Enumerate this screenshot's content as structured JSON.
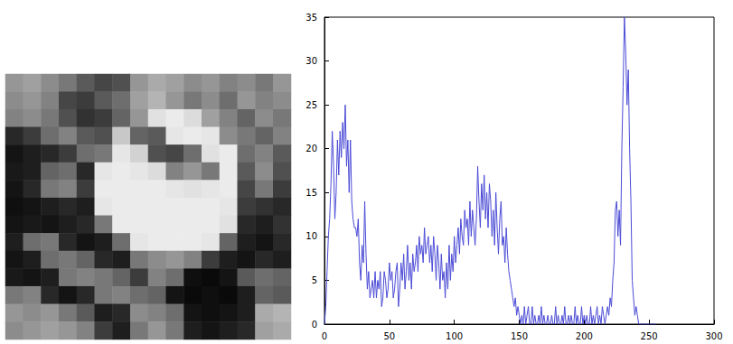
{
  "chart_data": [
    {
      "type": "heatmap",
      "cells": [
        [
          150,
          160,
          140,
          120,
          90,
          70,
          80,
          150,
          170,
          160,
          140,
          150,
          130,
          140,
          120,
          150
        ],
        [
          140,
          150,
          130,
          70,
          60,
          90,
          110,
          160,
          180,
          150,
          120,
          140,
          110,
          150,
          130,
          140
        ],
        [
          130,
          140,
          120,
          80,
          50,
          60,
          100,
          150,
          225,
          235,
          220,
          160,
          130,
          100,
          140,
          120
        ],
        [
          40,
          60,
          110,
          130,
          90,
          80,
          200,
          100,
          90,
          230,
          235,
          230,
          140,
          120,
          100,
          130
        ],
        [
          20,
          30,
          40,
          60,
          110,
          120,
          230,
          210,
          80,
          70,
          110,
          225,
          235,
          110,
          130,
          90
        ],
        [
          25,
          30,
          100,
          110,
          40,
          230,
          235,
          230,
          220,
          130,
          150,
          120,
          235,
          90,
          140,
          80
        ],
        [
          20,
          40,
          120,
          130,
          60,
          235,
          235,
          235,
          235,
          230,
          225,
          230,
          235,
          70,
          120,
          60
        ],
        [
          15,
          20,
          30,
          40,
          30,
          230,
          235,
          235,
          235,
          235,
          235,
          235,
          230,
          60,
          50,
          40
        ],
        [
          20,
          25,
          20,
          30,
          40,
          120,
          235,
          235,
          235,
          235,
          235,
          235,
          225,
          40,
          30,
          50
        ],
        [
          30,
          110,
          120,
          40,
          20,
          30,
          110,
          230,
          235,
          235,
          235,
          230,
          100,
          30,
          20,
          40
        ],
        [
          20,
          30,
          110,
          120,
          100,
          40,
          30,
          120,
          140,
          150,
          130,
          60,
          30,
          20,
          40,
          30
        ],
        [
          25,
          20,
          30,
          120,
          130,
          120,
          100,
          60,
          130,
          110,
          15,
          10,
          20,
          90,
          110,
          100
        ],
        [
          120,
          130,
          40,
          20,
          40,
          120,
          130,
          110,
          100,
          20,
          10,
          15,
          10,
          30,
          100,
          90
        ],
        [
          150,
          140,
          150,
          120,
          90,
          30,
          40,
          140,
          130,
          110,
          20,
          15,
          20,
          30,
          170,
          180
        ],
        [
          140,
          150,
          160,
          150,
          130,
          60,
          30,
          120,
          150,
          120,
          30,
          20,
          30,
          40,
          160,
          170
        ]
      ],
      "zlim": [
        0,
        255
      ],
      "tick_labels": false
    },
    {
      "type": "line",
      "x": [
        0,
        1,
        2,
        3,
        4,
        5,
        6,
        7,
        8,
        9,
        10,
        11,
        12,
        13,
        14,
        15,
        16,
        17,
        18,
        19,
        20,
        21,
        22,
        23,
        24,
        25,
        26,
        27,
        28,
        29,
        30,
        31,
        32,
        33,
        34,
        35,
        36,
        37,
        38,
        39,
        40,
        41,
        42,
        43,
        44,
        45,
        46,
        47,
        48,
        49,
        50,
        51,
        52,
        53,
        54,
        55,
        56,
        57,
        58,
        59,
        60,
        61,
        62,
        63,
        64,
        65,
        66,
        67,
        68,
        69,
        70,
        71,
        72,
        73,
        74,
        75,
        76,
        77,
        78,
        79,
        80,
        81,
        82,
        83,
        84,
        85,
        86,
        87,
        88,
        89,
        90,
        91,
        92,
        93,
        94,
        95,
        96,
        97,
        98,
        99,
        100,
        101,
        102,
        103,
        104,
        105,
        106,
        107,
        108,
        109,
        110,
        111,
        112,
        113,
        114,
        115,
        116,
        117,
        118,
        119,
        120,
        121,
        122,
        123,
        124,
        125,
        126,
        127,
        128,
        129,
        130,
        131,
        132,
        133,
        134,
        135,
        136,
        137,
        138,
        139,
        140,
        141,
        142,
        143,
        144,
        145,
        146,
        147,
        148,
        149,
        150,
        151,
        152,
        153,
        154,
        155,
        156,
        157,
        158,
        159,
        160,
        161,
        162,
        163,
        164,
        165,
        166,
        167,
        168,
        169,
        170,
        171,
        172,
        173,
        174,
        175,
        176,
        177,
        178,
        179,
        180,
        181,
        182,
        183,
        184,
        185,
        186,
        187,
        188,
        189,
        190,
        191,
        192,
        193,
        194,
        195,
        196,
        197,
        198,
        199,
        200,
        201,
        202,
        203,
        204,
        205,
        206,
        207,
        208,
        209,
        210,
        211,
        212,
        213,
        214,
        215,
        216,
        217,
        218,
        219,
        220,
        221,
        222,
        223,
        224,
        225,
        226,
        227,
        228,
        229,
        230,
        231,
        232,
        233,
        234,
        235,
        236,
        237,
        238,
        239,
        240,
        241,
        242,
        243,
        244,
        245,
        246,
        247,
        248,
        249,
        250,
        251,
        252,
        253,
        254,
        255
      ],
      "values": [
        0,
        2,
        6,
        10,
        12,
        16,
        22,
        18,
        12,
        15,
        21,
        17,
        22,
        19,
        23,
        20,
        25,
        18,
        21,
        15,
        21,
        14,
        12,
        11,
        11,
        10,
        12,
        7,
        5,
        9,
        7,
        14,
        8,
        4,
        6,
        3,
        4,
        5,
        3,
        6,
        3,
        5,
        4,
        6,
        2,
        3,
        6,
        5,
        3,
        4,
        7,
        5,
        6,
        3,
        4,
        6,
        7,
        2,
        4,
        7,
        5,
        8,
        4,
        6,
        9,
        5,
        7,
        4,
        8,
        6,
        7,
        9,
        6,
        10,
        8,
        9,
        7,
        11,
        8,
        9,
        10,
        7,
        9,
        6,
        10,
        8,
        5,
        9,
        7,
        4,
        8,
        5,
        6,
        3,
        7,
        4,
        9,
        5,
        8,
        6,
        10,
        7,
        9,
        11,
        8,
        12,
        10,
        9,
        13,
        11,
        12,
        9,
        14,
        10,
        13,
        11,
        9,
        12,
        18,
        14,
        11,
        16,
        13,
        17,
        12,
        15,
        11,
        16,
        14,
        10,
        13,
        9,
        15,
        11,
        8,
        12,
        14,
        9,
        10,
        7,
        11,
        8,
        6,
        5,
        4,
        3,
        2,
        3,
        1,
        2,
        1,
        0,
        1,
        0,
        2,
        0,
        1,
        2,
        0,
        0,
        2,
        0,
        1,
        0,
        0,
        1,
        0,
        2,
        0,
        1,
        0,
        0,
        1,
        0,
        0,
        1,
        0,
        0,
        2,
        0,
        1,
        0,
        0,
        1,
        0,
        2,
        0,
        0,
        1,
        0,
        1,
        0,
        0,
        2,
        0,
        1,
        0,
        0,
        2,
        0,
        1,
        0,
        1,
        0,
        0,
        2,
        0,
        1,
        0,
        1,
        2,
        0,
        1,
        0,
        2,
        1,
        0,
        1,
        2,
        1,
        3,
        2,
        5,
        7,
        13,
        14,
        10,
        13,
        9,
        20,
        27,
        35,
        31,
        25,
        29,
        20,
        14,
        5,
        3,
        1,
        2,
        1,
        0,
        0,
        0,
        0,
        0,
        0,
        0,
        0,
        0,
        0,
        0,
        0,
        0,
        0
      ],
      "color": "#4b4bd6",
      "xlim": [
        0,
        300
      ],
      "xticks": [
        0,
        50,
        100,
        150,
        200,
        250,
        300
      ],
      "ylim": [
        0,
        35
      ],
      "yticks": [
        0,
        5,
        10,
        15,
        20,
        25,
        30,
        35
      ],
      "grid": false
    }
  ]
}
